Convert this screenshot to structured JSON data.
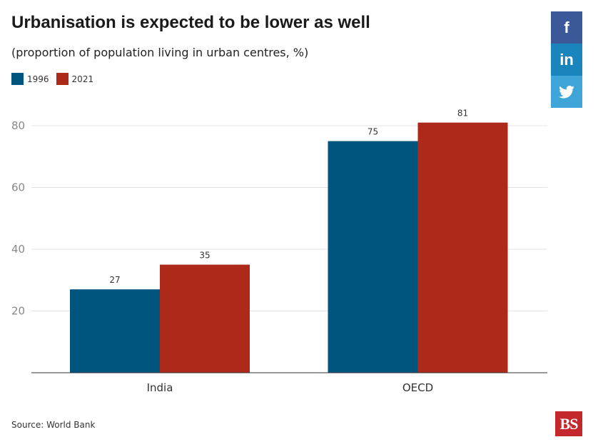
{
  "title": "Urbanisation is expected to be lower as well",
  "subtitle": "(proportion of population living in urban centres, %)",
  "source": "Source: World Bank",
  "logo": "BS",
  "share": {
    "facebook": {
      "label": "f",
      "icon": "facebook-icon",
      "color": "#3b5998"
    },
    "linkedin": {
      "label": "in",
      "icon": "linkedin-icon",
      "color": "#1a84bc"
    },
    "twitter": {
      "label": "",
      "icon": "twitter-icon",
      "color": "#3fa4d8"
    }
  },
  "chart_data": {
    "type": "bar",
    "categories": [
      "India",
      "OECD"
    ],
    "series": [
      {
        "name": "1996",
        "color": "#00557f",
        "values": [
          27,
          75
        ]
      },
      {
        "name": "2021",
        "color": "#ad2a1a",
        "values": [
          35,
          81
        ]
      }
    ],
    "yticks": [
      20,
      40,
      60,
      80
    ],
    "ylim": [
      0,
      80
    ],
    "grid": true,
    "legend": "top-left"
  }
}
